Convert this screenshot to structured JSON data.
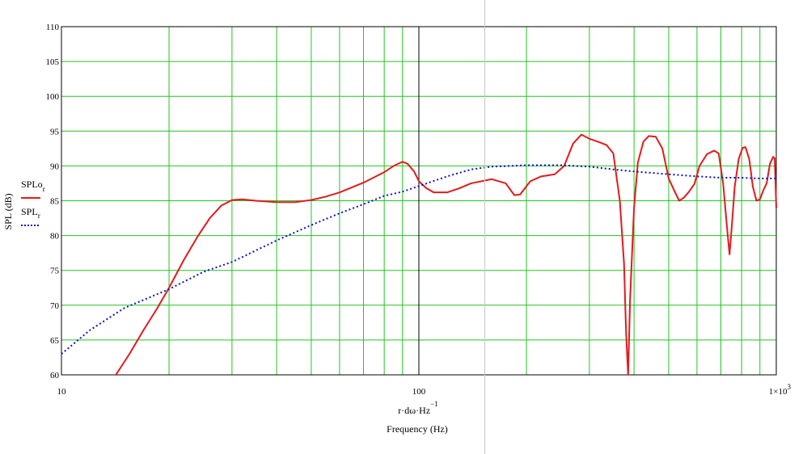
{
  "chart_data": {
    "type": "line",
    "x_scale": "log",
    "xlim": [
      10,
      1000
    ],
    "ylim": [
      60,
      110
    ],
    "grid": true,
    "grid_color": "#22c422",
    "xlabel": "r·dω·Hz",
    "xlabel_exponent": "−1",
    "xlabel2": "Frequency (Hz)",
    "ylabel": "SPL (dB)",
    "y_ticks": [
      60,
      65,
      70,
      75,
      80,
      85,
      90,
      95,
      100,
      105,
      110
    ],
    "x_tick_labels": [
      {
        "value": 10,
        "text": "10"
      },
      {
        "value": 100,
        "text": "100"
      },
      {
        "value": 1000,
        "text": "1×10",
        "sup": "3"
      }
    ],
    "series": [
      {
        "name": "SPLo",
        "subscript": "r",
        "color": "#e31a1c",
        "style": "solid",
        "points": [
          [
            14.2,
            60
          ],
          [
            15.5,
            63
          ],
          [
            17,
            66.5
          ],
          [
            18.5,
            69.5
          ],
          [
            20,
            72.5
          ],
          [
            22,
            76.5
          ],
          [
            24,
            79.8
          ],
          [
            26,
            82.5
          ],
          [
            28,
            84.3
          ],
          [
            30,
            85.1
          ],
          [
            32,
            85.2
          ],
          [
            35,
            85
          ],
          [
            40,
            84.8
          ],
          [
            45,
            84.8
          ],
          [
            50,
            85.1
          ],
          [
            55,
            85.6
          ],
          [
            60,
            86.2
          ],
          [
            70,
            87.6
          ],
          [
            80,
            89.1
          ],
          [
            85,
            90
          ],
          [
            90,
            90.6
          ],
          [
            93,
            90.3
          ],
          [
            97,
            89.2
          ],
          [
            100,
            87.8
          ],
          [
            105,
            86.8
          ],
          [
            110,
            86.2
          ],
          [
            120,
            86.2
          ],
          [
            130,
            86.8
          ],
          [
            140,
            87.5
          ],
          [
            160,
            88.1
          ],
          [
            175,
            87.5
          ],
          [
            185,
            85.8
          ],
          [
            192,
            85.9
          ],
          [
            205,
            87.8
          ],
          [
            220,
            88.5
          ],
          [
            240,
            88.8
          ],
          [
            255,
            90
          ],
          [
            270,
            93.2
          ],
          [
            285,
            94.5
          ],
          [
            300,
            93.9
          ],
          [
            320,
            93.4
          ],
          [
            335,
            93
          ],
          [
            350,
            91.8
          ],
          [
            365,
            85
          ],
          [
            375,
            76
          ],
          [
            380,
            66
          ],
          [
            385,
            60
          ],
          [
            390,
            71
          ],
          [
            400,
            84
          ],
          [
            410,
            90.5
          ],
          [
            425,
            93.5
          ],
          [
            440,
            94.3
          ],
          [
            460,
            94.2
          ],
          [
            480,
            92.5
          ],
          [
            500,
            88.2
          ],
          [
            520,
            86.3
          ],
          [
            535,
            85
          ],
          [
            550,
            85.4
          ],
          [
            570,
            86.3
          ],
          [
            590,
            87.4
          ],
          [
            610,
            90
          ],
          [
            640,
            91.7
          ],
          [
            670,
            92.2
          ],
          [
            690,
            91.8
          ],
          [
            710,
            87.5
          ],
          [
            720,
            84
          ],
          [
            730,
            80.5
          ],
          [
            740,
            77.3
          ],
          [
            750,
            81
          ],
          [
            765,
            87
          ],
          [
            785,
            91
          ],
          [
            805,
            92.6
          ],
          [
            820,
            92.7
          ],
          [
            840,
            91
          ],
          [
            860,
            87
          ],
          [
            880,
            85
          ],
          [
            900,
            85.2
          ],
          [
            920,
            86.5
          ],
          [
            940,
            87.5
          ],
          [
            960,
            90.3
          ],
          [
            980,
            91.3
          ],
          [
            990,
            91.1
          ],
          [
            1000,
            84
          ]
        ]
      },
      {
        "name": "SPL",
        "subscript": "r",
        "color": "#1010c8",
        "style": "dotted",
        "points": [
          [
            10,
            63
          ],
          [
            12,
            66.4
          ],
          [
            15,
            69.6
          ],
          [
            20,
            72.3
          ],
          [
            25,
            74.8
          ],
          [
            30,
            76.2
          ],
          [
            40,
            79.3
          ],
          [
            50,
            81.5
          ],
          [
            60,
            83.2
          ],
          [
            70,
            84.5
          ],
          [
            80,
            85.7
          ],
          [
            90,
            86.3
          ],
          [
            100,
            87.1
          ],
          [
            120,
            88.5
          ],
          [
            140,
            89.5
          ],
          [
            160,
            89.9
          ],
          [
            180,
            90
          ],
          [
            200,
            90.1
          ],
          [
            250,
            90.1
          ],
          [
            300,
            89.9
          ],
          [
            350,
            89.5
          ],
          [
            400,
            89.2
          ],
          [
            450,
            89
          ],
          [
            500,
            88.8
          ],
          [
            600,
            88.5
          ],
          [
            700,
            88.3
          ],
          [
            800,
            88.3
          ],
          [
            900,
            88.2
          ],
          [
            1000,
            88.2
          ]
        ]
      }
    ]
  }
}
